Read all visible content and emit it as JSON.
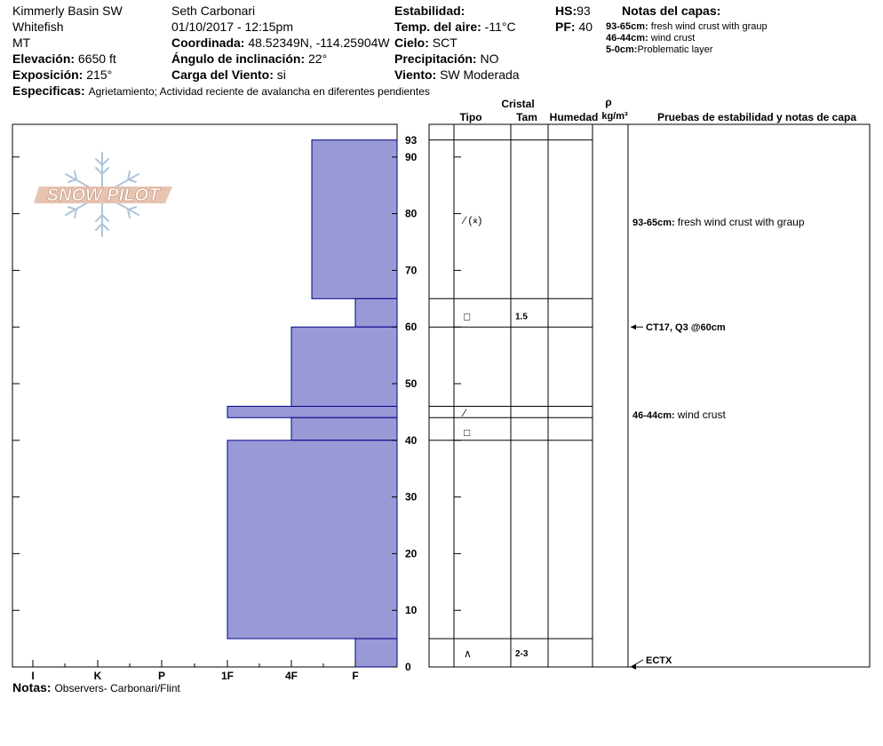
{
  "header": {
    "location_lines": [
      "Kimmerly Basin SW",
      "Whitefish",
      "MT"
    ],
    "observer": "Seth Carbonari",
    "datetime": "01/10/2017 - 12:15pm",
    "coord_label": "Coordinada:",
    "coord_value": "48.52349N, -114.25904W",
    "elev_label": "Elevación:",
    "elev_value": "6650 ft",
    "aspect_label": "Exposición:",
    "aspect_value": "215°",
    "incline_label": "Ángulo de inclinación:",
    "incline_value": "22°",
    "wind_load_label": "Carga del Viento:",
    "wind_load_value": "si",
    "stability_label": "Estabilidad:",
    "stability_value": "",
    "air_temp_label": "Temp. del aire:",
    "air_temp_value": "-11°C",
    "sky_label": "Cielo:",
    "sky_value": "SCT",
    "precip_label": "Precipitación:",
    "precip_value": "NO",
    "wind_label": "Viento:",
    "wind_value": "SW Moderada",
    "hs_label": "HS:",
    "hs_value": "93",
    "pf_label": "PF:",
    "pf_value": "40",
    "specifics_label": "Especificas:",
    "specifics_value": "Agrietamiento;  Actividad reciente de avalancha en diferentes pendientes"
  },
  "layer_notes": {
    "title": "Notas del capas:",
    "items": [
      {
        "range": "93-65cm:",
        "text": "fresh wind crust with graup"
      },
      {
        "range": "46-44cm:",
        "text": "wind crust"
      },
      {
        "range": "5-0cm:",
        "text": "Problematic layer"
      }
    ]
  },
  "logo_text": "SNOW PILOT",
  "columns": {
    "crystal": "Cristal",
    "type": "Tipo",
    "size": "Tam",
    "moisture": "Humedad",
    "rho": "ρ",
    "density_unit": "kg/m³",
    "tests": "Pruebas de estabilidad y notas de capa"
  },
  "notes_label": "Notas:",
  "notes_value": "Observers- Carbonari/Flint",
  "chart_data": {
    "type": "bar",
    "title": "",
    "xlabel": "",
    "ylabel": "",
    "x_categories": [
      "I",
      "K",
      "P",
      "1F",
      "4F",
      "F"
    ],
    "y_ticks": [
      0,
      10,
      20,
      30,
      40,
      50,
      60,
      70,
      80,
      90
    ],
    "ylim": [
      0,
      93
    ],
    "top_label": "93",
    "hardness_layers": [
      {
        "top": 93,
        "bottom": 65,
        "hardness": "4F+"
      },
      {
        "top": 65,
        "bottom": 60,
        "hardness": "F+"
      },
      {
        "top": 60,
        "bottom": 46,
        "hardness": "4F"
      },
      {
        "top": 46,
        "bottom": 44,
        "hardness": "1F"
      },
      {
        "top": 44,
        "bottom": 40,
        "hardness": "4F"
      },
      {
        "top": 40,
        "bottom": 5,
        "hardness": "1F"
      },
      {
        "top": 5,
        "bottom": 0,
        "hardness": "F+"
      }
    ],
    "layer_boundaries": [
      93,
      65,
      60,
      46,
      44,
      40,
      5
    ],
    "crystals": [
      {
        "depth": 79,
        "symbol": "⁄ (⨰)",
        "size": ""
      },
      {
        "depth": 62,
        "symbol": "□",
        "size": "1.5"
      },
      {
        "depth": 45,
        "symbol": "⁄",
        "size": ""
      },
      {
        "depth": 41.5,
        "symbol": "□",
        "size": ""
      },
      {
        "depth": 2.5,
        "symbol": "∧",
        "size": "2-3"
      }
    ],
    "layer_comments": [
      {
        "depth": 78.5,
        "range": "93-65cm:",
        "text": "fresh wind crust with graup"
      },
      {
        "depth": 44.5,
        "range": "46-44cm:",
        "text": "wind crust"
      }
    ],
    "stability_tests": [
      {
        "depth": 60,
        "text": "CT17, Q3 @60cm"
      },
      {
        "depth": 0,
        "text": "ECTX"
      }
    ],
    "colors": {
      "fill": "#9999D6",
      "outline": "#00008B"
    }
  }
}
